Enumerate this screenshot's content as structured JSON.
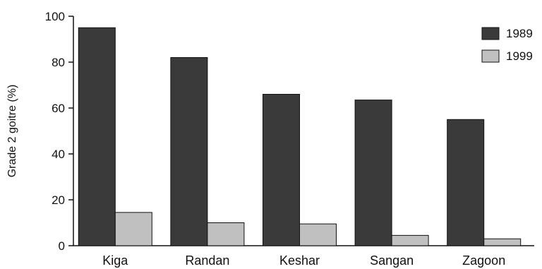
{
  "chart_data": {
    "type": "bar",
    "title": "",
    "xlabel": "",
    "ylabel": "Grade 2 goitre (%)",
    "ylim": [
      0,
      100
    ],
    "yticks": [
      0,
      20,
      40,
      60,
      80,
      100
    ],
    "grid": false,
    "legend_position": "top-right",
    "categories": [
      "Kiga",
      "Randan",
      "Keshar",
      "Sangan",
      "Zagoon"
    ],
    "series": [
      {
        "name": "1989",
        "color": "#3a3a3a",
        "values": [
          95,
          82,
          66,
          63.5,
          55
        ]
      },
      {
        "name": "1999",
        "color": "#c0c0c0",
        "values": [
          14.5,
          10,
          9.5,
          4.5,
          3
        ]
      }
    ]
  }
}
